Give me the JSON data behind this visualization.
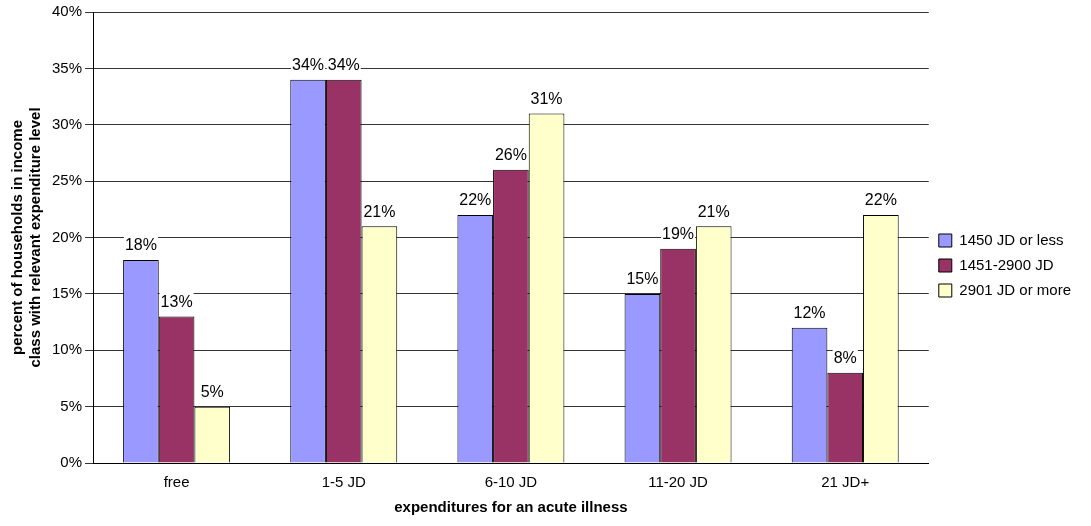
{
  "chart_data": {
    "type": "bar",
    "xlabel": "expenditures for an acute illness",
    "ylabel": "percent of households in income class with relevant expenditure level",
    "categories": [
      "free",
      "1-5 JD",
      "6-10 JD",
      "11-20 JD",
      "21 JD+"
    ],
    "series": [
      {
        "name": "1450 JD or less",
        "color": "#9999ff",
        "values": [
          18,
          34,
          22,
          15,
          12
        ],
        "value_labels": [
          "18%",
          "34%",
          "22%",
          "15%",
          "12%"
        ]
      },
      {
        "name": "1451-2900 JD",
        "color": "#993366",
        "values": [
          13,
          34,
          26,
          19,
          8
        ],
        "value_labels": [
          "13%",
          "34%",
          "26%",
          "19%",
          "8%"
        ]
      },
      {
        "name": "2901 JD or more",
        "color": "#ffffcc",
        "values": [
          5,
          21,
          31,
          21,
          22
        ],
        "value_labels": [
          "5%",
          "21%",
          "31%",
          "21%",
          "22%"
        ]
      }
    ],
    "ylim": [
      0,
      40
    ],
    "yticks": [
      {
        "value": 0,
        "label": "0%"
      },
      {
        "value": 5,
        "label": "5%"
      },
      {
        "value": 10,
        "label": "10%"
      },
      {
        "value": 15,
        "label": "15%"
      },
      {
        "value": 20,
        "label": "20%"
      },
      {
        "value": 25,
        "label": "25%"
      },
      {
        "value": 30,
        "label": "30%"
      },
      {
        "value": 35,
        "label": "35%"
      },
      {
        "value": 40,
        "label": "40%"
      }
    ],
    "grid": "y",
    "legend": "right"
  }
}
